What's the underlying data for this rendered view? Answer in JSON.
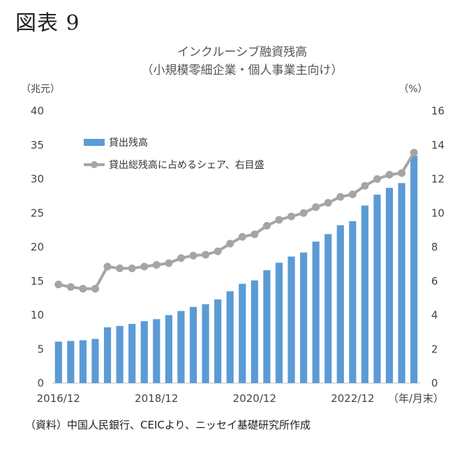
{
  "figure_label": "図表 9",
  "source_note": "（資料）中国人民銀行、CEICより、ニッセイ基礎研究所作成",
  "colors": {
    "bar": "#5b9bd5",
    "line": "#a5a5a5"
  },
  "chart_data": {
    "type": "bar+line",
    "title": "インクルーシブ融資残高",
    "subtitle": "（小規模零細企業・個人事業主向け）",
    "ylabel_left": "（兆元）",
    "ylabel_right": "（%）",
    "xlabel_unit": "（年/月末）",
    "ylim_left": [
      0,
      40
    ],
    "ylim_right": [
      0,
      16
    ],
    "yticks_left": [
      "0",
      "5",
      "10",
      "15",
      "20",
      "25",
      "30",
      "35",
      "40"
    ],
    "yticks_right": [
      "0",
      "2",
      "4",
      "6",
      "8",
      "10",
      "12",
      "14",
      "16"
    ],
    "x_tick_labels": [
      {
        "index": 0,
        "label": "2016/12"
      },
      {
        "index": 8,
        "label": "2018/12"
      },
      {
        "index": 16,
        "label": "2020/12"
      },
      {
        "index": 24,
        "label": "2022/12"
      }
    ],
    "grid": false,
    "legend_position": "top-left",
    "series": [
      {
        "name": "貸出残高",
        "type": "bar",
        "axis": "left",
        "values": [
          6.1,
          6.2,
          6.3,
          6.5,
          8.2,
          8.4,
          8.7,
          9.1,
          9.4,
          10.0,
          10.6,
          11.2,
          11.6,
          12.3,
          13.5,
          14.6,
          15.1,
          16.6,
          17.7,
          18.6,
          19.2,
          20.8,
          21.9,
          23.2,
          23.8,
          26.1,
          27.7,
          28.7,
          29.4,
          33.4
        ]
      },
      {
        "name": "貸出総残高に占めるシェア、右目盛",
        "type": "line",
        "axis": "right",
        "values": [
          5.8,
          5.65,
          5.55,
          5.55,
          6.85,
          6.75,
          6.75,
          6.85,
          6.95,
          7.05,
          7.35,
          7.5,
          7.55,
          7.75,
          8.2,
          8.6,
          8.75,
          9.25,
          9.6,
          9.8,
          10.0,
          10.35,
          10.6,
          10.95,
          11.1,
          11.6,
          12.0,
          12.25,
          12.35,
          13.55
        ]
      }
    ]
  }
}
